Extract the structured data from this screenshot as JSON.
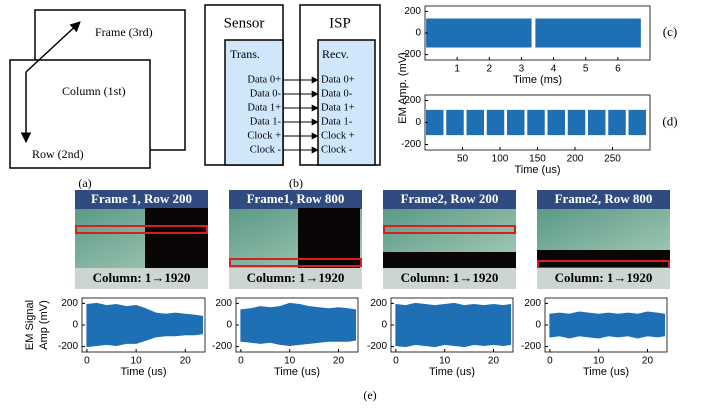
{
  "panel_a": {
    "frame": "Frame (3rd)",
    "column": "Column (1st)",
    "row": "Row (2nd)",
    "caption": "(a)"
  },
  "panel_b": {
    "sensor": "Sensor",
    "isp": "ISP",
    "trans": "Trans.",
    "recv": "Recv.",
    "signals": [
      "Data 0+",
      "Data 0-",
      "Data 1+",
      "Data 1-",
      "Clock +",
      "Clock -"
    ],
    "caption": "(b)"
  },
  "panel_e": {
    "caption": "(e)",
    "frames": [
      {
        "title": "Frame 1, Row 200",
        "column": "Column: 1→1920"
      },
      {
        "title": "Frame1, Row 800",
        "column": "Column: 1→1920"
      },
      {
        "title": "Frame2, Row 200",
        "column": "Column: 1→1920"
      },
      {
        "title": "Frame2, Row 800",
        "column": "Column: 1→1920"
      }
    ]
  },
  "chart_data": [
    {
      "type": "band",
      "caption": "(c)",
      "xlabel": "Time (ms)",
      "ylabel": "EM Amp. (mV)",
      "color": "#1f6fb4",
      "x": [
        0.05,
        3.3,
        3.38,
        3.45,
        6.7
      ],
      "upper": [
        130,
        130,
        null,
        130,
        130
      ],
      "lower": [
        -130,
        -130,
        null,
        -130,
        -130
      ],
      "xlim": [
        0,
        7
      ],
      "xticks": [
        1,
        2,
        3,
        4,
        5,
        6
      ],
      "ylim": [
        -250,
        250
      ],
      "yticks": [
        -200,
        0,
        200
      ]
    },
    {
      "type": "band",
      "caption": "(d)",
      "xlabel": "Time (us)",
      "color": "#1f6fb4",
      "x": [
        2,
        24,
        26,
        29,
        51,
        53,
        56,
        78,
        80,
        83,
        105,
        107,
        110,
        132,
        134,
        137,
        159,
        161,
        164,
        186,
        188,
        191,
        213,
        215,
        218,
        240,
        242,
        245,
        267,
        269,
        272,
        294
      ],
      "upper": [
        110,
        110,
        null,
        110,
        110,
        null,
        110,
        110,
        null,
        110,
        110,
        null,
        110,
        110,
        null,
        110,
        110,
        null,
        110,
        110,
        null,
        110,
        110,
        null,
        110,
        110,
        null,
        110,
        110,
        null,
        110,
        110
      ],
      "lower": [
        -110,
        -110,
        null,
        -110,
        -110,
        null,
        -110,
        -110,
        null,
        -110,
        -110,
        null,
        -110,
        -110,
        null,
        -110,
        -110,
        null,
        -110,
        -110,
        null,
        -110,
        -110,
        null,
        -110,
        -110,
        null,
        -110,
        -110,
        null,
        -110,
        -110
      ],
      "xlim": [
        0,
        300
      ],
      "xticks": [
        50,
        100,
        150,
        200,
        250
      ],
      "ylim": [
        -250,
        250
      ],
      "yticks": [
        -200,
        0,
        200
      ]
    },
    {
      "type": "band",
      "xlabel": "Time (us)",
      "ylabel": [
        "EM Signal",
        "Amp (mV)"
      ],
      "color": "#1f6fb4",
      "x": [
        0,
        2,
        4,
        6,
        8,
        10,
        12,
        14,
        16,
        18,
        20,
        22,
        23.5
      ],
      "upper": [
        190,
        200,
        180,
        190,
        170,
        180,
        150,
        110,
        100,
        110,
        100,
        90,
        80
      ],
      "lower": [
        -200,
        -190,
        -180,
        -190,
        -170,
        -170,
        -140,
        -110,
        -100,
        -100,
        -90,
        -90,
        -80
      ],
      "xlim": [
        -1,
        24
      ],
      "xticks": [
        0,
        10,
        20
      ],
      "ylim": [
        -250,
        250
      ],
      "yticks": [
        -200,
        0,
        200
      ]
    },
    {
      "type": "band",
      "xlabel": "Time (us)",
      "color": "#1f6fb4",
      "x": [
        0,
        2,
        4,
        6,
        8,
        10,
        12,
        14,
        16,
        18,
        20,
        22,
        23.5
      ],
      "upper": [
        140,
        150,
        170,
        160,
        170,
        200,
        190,
        170,
        160,
        150,
        160,
        150,
        140
      ],
      "lower": [
        -150,
        -160,
        -170,
        -160,
        -180,
        -190,
        -180,
        -170,
        -160,
        -150,
        -150,
        -150,
        -140
      ],
      "xlim": [
        -1,
        24
      ],
      "xticks": [
        0,
        10,
        20
      ],
      "ylim": [
        -250,
        250
      ],
      "yticks": [
        -200,
        0,
        200
      ]
    },
    {
      "type": "band",
      "xlabel": "Time (us)",
      "color": "#1f6fb4",
      "x": [
        0,
        2,
        4,
        6,
        8,
        10,
        12,
        14,
        16,
        18,
        20,
        22,
        23.5
      ],
      "upper": [
        190,
        180,
        200,
        190,
        180,
        190,
        200,
        180,
        190,
        180,
        190,
        180,
        190
      ],
      "lower": [
        -190,
        -200,
        -180,
        -190,
        -200,
        -180,
        -190,
        -200,
        -180,
        -190,
        -180,
        -190,
        -180
      ],
      "xlim": [
        -1,
        24
      ],
      "xticks": [
        0,
        10,
        20
      ],
      "ylim": [
        -250,
        250
      ],
      "yticks": [
        -200,
        0,
        200
      ]
    },
    {
      "type": "band",
      "xlabel": "Time (us)",
      "color": "#1f6fb4",
      "x": [
        0,
        2,
        4,
        6,
        8,
        10,
        12,
        14,
        16,
        18,
        20,
        22,
        23.5
      ],
      "upper": [
        100,
        110,
        100,
        120,
        110,
        100,
        110,
        100,
        110,
        100,
        120,
        110,
        100
      ],
      "lower": [
        -110,
        -100,
        -120,
        -100,
        -110,
        -120,
        -100,
        -110,
        -100,
        -120,
        -100,
        -110,
        -100
      ],
      "xlim": [
        -1,
        24
      ],
      "xticks": [
        0,
        10,
        20
      ],
      "ylim": [
        -250,
        250
      ],
      "yticks": [
        -200,
        0,
        200
      ]
    }
  ]
}
